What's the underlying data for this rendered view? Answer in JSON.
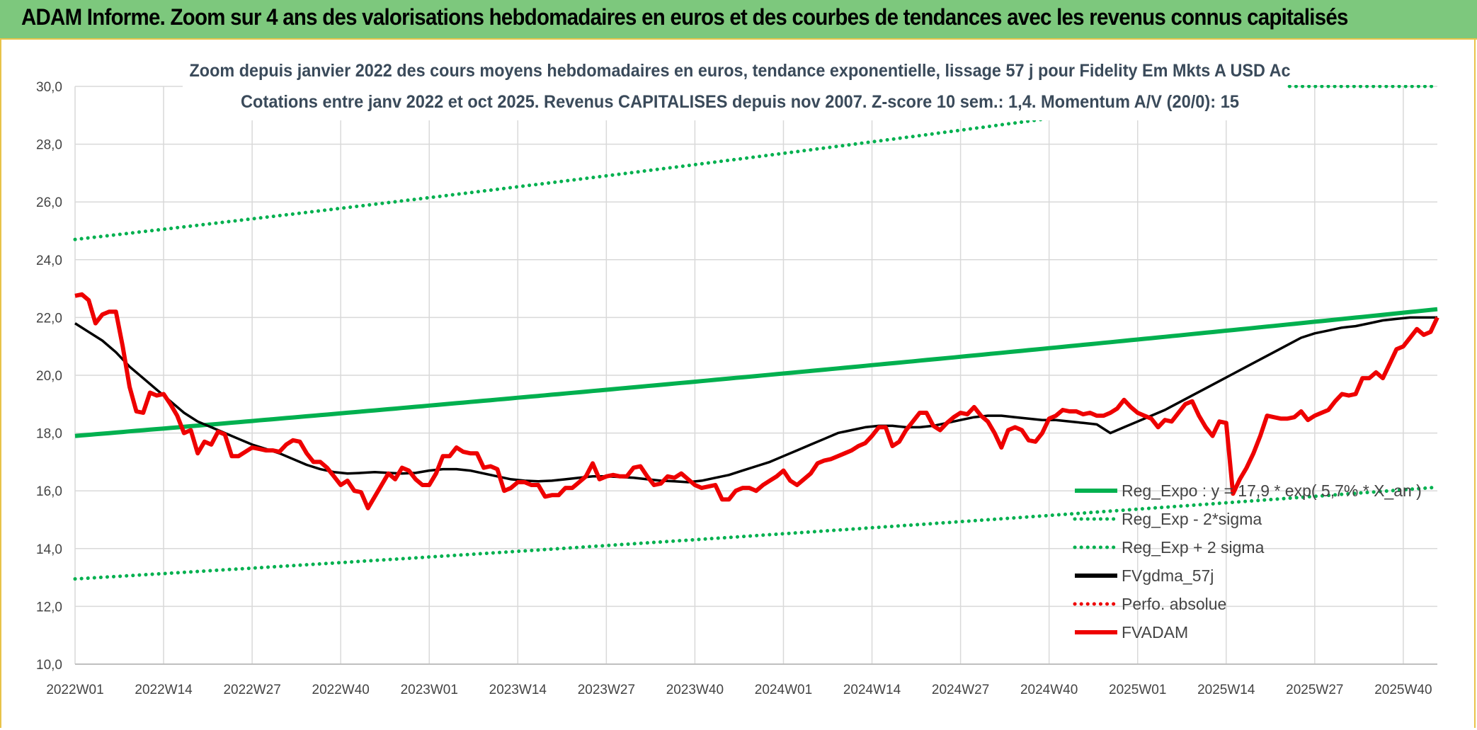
{
  "header": {
    "banner": "ADAM Informe. Zoom sur 4 ans des valorisations hebdomadaires en euros et des courbes de tendances avec les revenus connus capitalisés"
  },
  "colors": {
    "banner_bg": "#7dc87d",
    "trend": "#00b04f",
    "smooth": "#000000",
    "price": "#ee0000",
    "perf": "#cc0000",
    "grid": "#d9d9d9"
  },
  "chart_data": {
    "type": "line",
    "title_line1": "Zoom depuis janvier 2022 des cours moyens hebdomadaires en euros, tendance exponentielle, lissage 57 j pour Fidelity Em Mkts A USD Ac",
    "title_line2": "Cotations entre janv 2022 et oct 2025. Revenus CAPITALISES depuis nov 2007. Z-score 10 sem.: 1,4. Momentum A/V (20/0): 15",
    "xlabel": "",
    "ylabel": "",
    "ylim": [
      10,
      30
    ],
    "yticks": [
      "10,0",
      "12,0",
      "14,0",
      "16,0",
      "18,0",
      "20,0",
      "22,0",
      "24,0",
      "26,0",
      "28,0",
      "30,0"
    ],
    "x_tick_labels": [
      "2022W01",
      "2022W14",
      "2022W27",
      "2022W40",
      "2023W01",
      "2023W14",
      "2023W27",
      "2023W40",
      "2024W01",
      "2024W14",
      "2024W27",
      "2024W40",
      "2025W01",
      "2025W14",
      "2025W27",
      "2025W40"
    ],
    "x_tick_weeks": [
      0,
      13,
      26,
      39,
      52,
      65,
      78,
      91,
      104,
      117,
      130,
      143,
      156,
      169,
      182,
      195
    ],
    "n_weeks": 201,
    "legend": [
      {
        "label": "Reg_Expo : y = 17,9 * exp( 5,7% * X_an )",
        "style": "solid",
        "color": "#00b04f"
      },
      {
        "label": "Reg_Exp - 2*sigma",
        "style": "dotted",
        "color": "#00b04f"
      },
      {
        "label": "Reg_Exp + 2 sigma",
        "style": "dotted",
        "color": "#00b04f"
      },
      {
        "label": "FVgdma_57j",
        "style": "solid",
        "color": "#000000"
      },
      {
        "label": "Perfo. absolue",
        "style": "dotted",
        "color": "#ee0000"
      },
      {
        "label": "FVADAM",
        "style": "solid",
        "color": "#ee0000"
      }
    ],
    "series": [
      {
        "name": "Reg_Expo",
        "curve": "exponential",
        "base": 17.9,
        "rate_per_year": 0.057
      },
      {
        "name": "Reg_Exp - 2*sigma",
        "curve": "exponential",
        "base": 12.95,
        "rate_per_year": 0.057
      },
      {
        "name": "Reg_Exp + 2 sigma",
        "curve": "exponential",
        "base": 24.7,
        "rate_per_year": 0.057
      },
      {
        "name": "FVgdma_57j",
        "weeks": [
          0,
          2,
          4,
          6,
          8,
          10,
          12,
          14,
          16,
          18,
          20,
          22,
          24,
          26,
          28,
          30,
          32,
          34,
          36,
          38,
          40,
          42,
          44,
          46,
          48,
          50,
          52,
          54,
          56,
          58,
          60,
          62,
          64,
          66,
          68,
          70,
          72,
          74,
          76,
          78,
          80,
          82,
          84,
          86,
          88,
          90,
          92,
          94,
          96,
          98,
          100,
          102,
          104,
          106,
          108,
          110,
          112,
          114,
          116,
          118,
          120,
          122,
          124,
          126,
          128,
          130,
          132,
          134,
          136,
          138,
          140,
          142,
          144,
          146,
          148,
          150,
          152,
          154,
          156,
          158,
          160,
          162,
          164,
          166,
          168,
          170,
          172,
          174,
          176,
          178,
          180,
          182,
          184,
          186,
          188,
          190,
          192,
          194,
          196,
          198,
          200
        ],
        "values": [
          21.8,
          21.5,
          21.2,
          20.8,
          20.3,
          19.9,
          19.5,
          19.1,
          18.7,
          18.4,
          18.2,
          18.0,
          17.8,
          17.6,
          17.45,
          17.3,
          17.1,
          16.9,
          16.75,
          16.65,
          16.6,
          16.62,
          16.65,
          16.62,
          16.6,
          16.62,
          16.7,
          16.75,
          16.75,
          16.7,
          16.6,
          16.5,
          16.4,
          16.35,
          16.33,
          16.35,
          16.4,
          16.45,
          16.5,
          16.5,
          16.48,
          16.45,
          16.4,
          16.35,
          16.33,
          16.3,
          16.35,
          16.45,
          16.55,
          16.7,
          16.85,
          17.0,
          17.2,
          17.4,
          17.6,
          17.8,
          18.0,
          18.1,
          18.2,
          18.25,
          18.25,
          18.2,
          18.2,
          18.25,
          18.35,
          18.45,
          18.55,
          18.6,
          18.6,
          18.55,
          18.5,
          18.45,
          18.45,
          18.4,
          18.35,
          18.3,
          18.0,
          18.2,
          18.4,
          18.6,
          18.8,
          19.05,
          19.3,
          19.55,
          19.8,
          20.05,
          20.3,
          20.55,
          20.8,
          21.05,
          21.3,
          21.45,
          21.55,
          21.65,
          21.7,
          21.8,
          21.9,
          21.95,
          22.0,
          22.0,
          22.0
        ]
      },
      {
        "name": "FVADAM",
        "weeks": [
          0,
          1,
          2,
          3,
          4,
          5,
          6,
          7,
          8,
          9,
          10,
          11,
          12,
          13,
          14,
          15,
          16,
          17,
          18,
          19,
          20,
          21,
          22,
          23,
          24,
          25,
          26,
          27,
          28,
          29,
          30,
          31,
          32,
          33,
          34,
          35,
          36,
          37,
          38,
          39,
          40,
          41,
          42,
          43,
          44,
          45,
          46,
          47,
          48,
          49,
          50,
          51,
          52,
          53,
          54,
          55,
          56,
          57,
          58,
          59,
          60,
          61,
          62,
          63,
          64,
          65,
          66,
          67,
          68,
          69,
          70,
          71,
          72,
          73,
          74,
          75,
          76,
          77,
          78,
          79,
          80,
          81,
          82,
          83,
          84,
          85,
          86,
          87,
          88,
          89,
          90,
          91,
          92,
          93,
          94,
          95,
          96,
          97,
          98,
          99,
          100,
          101,
          102,
          103,
          104,
          105,
          106,
          107,
          108,
          109,
          110,
          111,
          112,
          113,
          114,
          115,
          116,
          117,
          118,
          119,
          120,
          121,
          122,
          123,
          124,
          125,
          126,
          127,
          128,
          129,
          130,
          131,
          132,
          133,
          134,
          135,
          136,
          137,
          138,
          139,
          140,
          141,
          142,
          143,
          144,
          145,
          146,
          147,
          148,
          149,
          150,
          151,
          152,
          153,
          154,
          155,
          156,
          157,
          158,
          159,
          160,
          161,
          162,
          163,
          164,
          165,
          166,
          167,
          168,
          169,
          170,
          171,
          172,
          173,
          174,
          175,
          176,
          177,
          178,
          179,
          180,
          181,
          182,
          183,
          184,
          185,
          186,
          187,
          188,
          189,
          190,
          191,
          192,
          193,
          194,
          195,
          196,
          197,
          198,
          199,
          200
        ],
        "values": [
          22.75,
          22.8,
          22.6,
          21.8,
          22.1,
          22.2,
          22.2,
          21.0,
          19.6,
          18.75,
          18.7,
          19.4,
          19.3,
          19.35,
          19.0,
          18.6,
          18.0,
          18.1,
          17.3,
          17.7,
          17.6,
          18.05,
          17.95,
          17.2,
          17.2,
          17.35,
          17.5,
          17.45,
          17.4,
          17.4,
          17.35,
          17.6,
          17.75,
          17.7,
          17.3,
          17.0,
          17.0,
          16.8,
          16.5,
          16.2,
          16.35,
          16.0,
          15.95,
          15.4,
          15.8,
          16.2,
          16.6,
          16.4,
          16.8,
          16.7,
          16.4,
          16.2,
          16.2,
          16.6,
          17.2,
          17.2,
          17.5,
          17.35,
          17.3,
          17.3,
          16.8,
          16.85,
          16.75,
          16.0,
          16.1,
          16.3,
          16.3,
          16.2,
          16.2,
          15.8,
          15.85,
          15.85,
          16.1,
          16.1,
          16.3,
          16.5,
          16.95,
          16.4,
          16.5,
          16.55,
          16.5,
          16.5,
          16.8,
          16.85,
          16.5,
          16.2,
          16.25,
          16.5,
          16.45,
          16.6,
          16.4,
          16.2,
          16.1,
          16.15,
          16.2,
          15.7,
          15.7,
          16.0,
          16.1,
          16.1,
          16.0,
          16.2,
          16.35,
          16.5,
          16.7,
          16.35,
          16.2,
          16.4,
          16.6,
          16.95,
          17.05,
          17.1,
          17.2,
          17.3,
          17.4,
          17.55,
          17.65,
          17.9,
          18.2,
          18.2,
          17.55,
          17.7,
          18.1,
          18.4,
          18.7,
          18.7,
          18.25,
          18.1,
          18.35,
          18.55,
          18.7,
          18.65,
          18.9,
          18.6,
          18.4,
          18.0,
          17.5,
          18.1,
          18.2,
          18.1,
          17.75,
          17.7,
          18.0,
          18.5,
          18.6,
          18.8,
          18.75,
          18.75,
          18.65,
          18.7,
          18.6,
          18.6,
          18.7,
          18.85,
          19.15,
          18.9,
          18.7,
          18.6,
          18.5,
          18.2,
          18.45,
          18.4,
          18.7,
          19.0,
          19.1,
          18.6,
          18.2,
          17.9,
          18.4,
          18.35,
          15.9,
          16.4,
          16.8,
          17.3,
          17.9,
          18.6,
          18.55,
          18.5,
          18.5,
          18.55,
          18.75,
          18.45,
          18.6,
          18.7,
          18.8,
          19.1,
          19.35,
          19.3,
          19.35,
          19.9,
          19.9,
          20.1,
          19.9,
          20.4,
          20.9,
          21.0,
          21.3,
          21.6,
          21.4,
          21.5,
          22.0
        ]
      }
    ]
  }
}
